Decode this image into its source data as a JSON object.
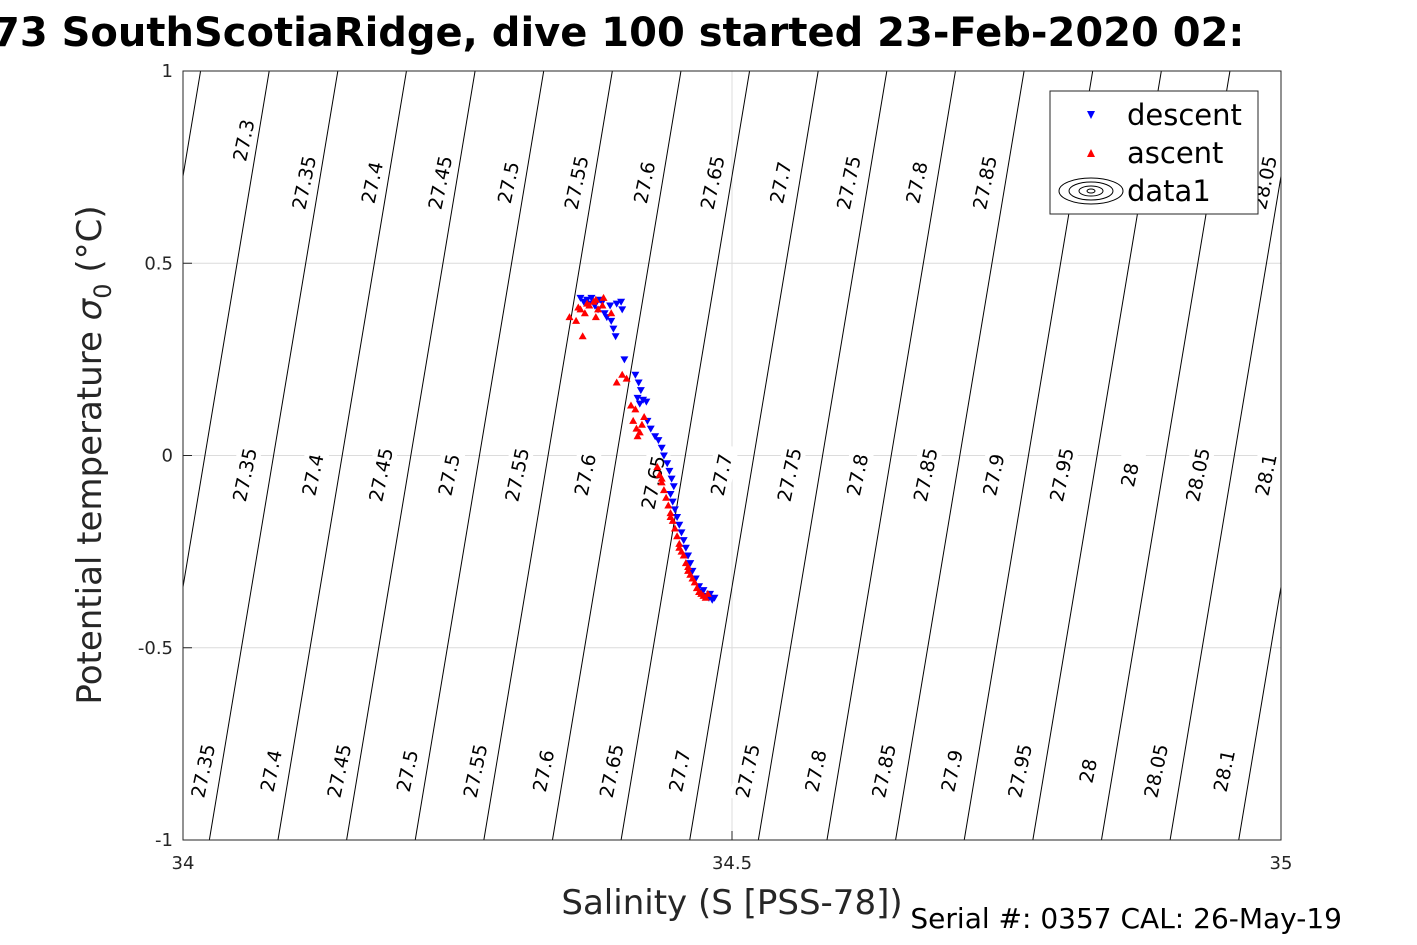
{
  "title": "73 SouthScotiaRidge, dive 100 started 23-Feb-2020 02:",
  "footer": "Serial #: 0357  CAL: 26-May-19",
  "chart_data": {
    "type": "scatter",
    "xlabel": "Salinity (S [PSS-78])",
    "ylabel_prefix": "Potential temperature ",
    "ylabel_symbol": "σ",
    "ylabel_subscript": "0",
    "ylabel_suffix": " (°C)",
    "xlim": [
      34,
      35
    ],
    "ylim": [
      -1,
      1
    ],
    "xticks": [
      {
        "value": 34,
        "label": "34"
      },
      {
        "value": 34.5,
        "label": "34.5"
      },
      {
        "value": 35,
        "label": "35"
      }
    ],
    "yticks": [
      {
        "value": 1,
        "label": "1"
      },
      {
        "value": 0.5,
        "label": "0.5"
      },
      {
        "value": 0,
        "label": "0"
      },
      {
        "value": -0.5,
        "label": "-0.5"
      },
      {
        "value": -1,
        "label": "-1"
      }
    ],
    "grid": true,
    "legend_position": "top-right",
    "legend": [
      {
        "label": "descent",
        "marker": "triangle-down",
        "color": "#0000ff"
      },
      {
        "label": "ascent",
        "marker": "triangle-up",
        "color": "#ff0000"
      },
      {
        "label": "data1",
        "marker": "contour",
        "color": "#000000"
      }
    ],
    "contours": {
      "levels": [
        27.3,
        27.35,
        27.4,
        27.45,
        27.5,
        27.55,
        27.6,
        27.65,
        27.7,
        27.75,
        27.8,
        27.85,
        27.9,
        27.95,
        28,
        28.05,
        28.1
      ],
      "labels_top": [
        {
          "s": 34.055,
          "t": 0.82,
          "label": "27.3"
        },
        {
          "s": 34.11,
          "t": 0.71,
          "label": "27.35"
        },
        {
          "s": 34.172,
          "t": 0.71,
          "label": "27.4"
        },
        {
          "s": 34.234,
          "t": 0.71,
          "label": "27.45"
        },
        {
          "s": 34.296,
          "t": 0.71,
          "label": "27.5"
        },
        {
          "s": 34.358,
          "t": 0.71,
          "label": "27.55"
        },
        {
          "s": 34.42,
          "t": 0.71,
          "label": "27.6"
        },
        {
          "s": 34.482,
          "t": 0.71,
          "label": "27.65"
        },
        {
          "s": 34.544,
          "t": 0.71,
          "label": "27.7"
        },
        {
          "s": 34.606,
          "t": 0.71,
          "label": "27.75"
        },
        {
          "s": 34.668,
          "t": 0.71,
          "label": "27.8"
        },
        {
          "s": 34.73,
          "t": 0.71,
          "label": "27.85"
        },
        {
          "s": 34.985,
          "t": 0.71,
          "label": "28.05"
        }
      ],
      "labels_mid": [
        {
          "s": 34.056,
          "t": -0.05,
          "label": "27.35"
        },
        {
          "s": 34.118,
          "t": -0.05,
          "label": "27.4"
        },
        {
          "s": 34.18,
          "t": -0.05,
          "label": "27.45"
        },
        {
          "s": 34.242,
          "t": -0.05,
          "label": "27.5"
        },
        {
          "s": 34.304,
          "t": -0.05,
          "label": "27.55"
        },
        {
          "s": 34.366,
          "t": -0.05,
          "label": "27.6"
        },
        {
          "s": 34.428,
          "t": -0.07,
          "label": "27.65"
        },
        {
          "s": 34.49,
          "t": -0.05,
          "label": "27.7"
        },
        {
          "s": 34.552,
          "t": -0.05,
          "label": "27.75"
        },
        {
          "s": 34.614,
          "t": -0.05,
          "label": "27.8"
        },
        {
          "s": 34.676,
          "t": -0.05,
          "label": "27.85"
        },
        {
          "s": 34.738,
          "t": -0.05,
          "label": "27.9"
        },
        {
          "s": 34.8,
          "t": -0.05,
          "label": "27.95"
        },
        {
          "s": 34.862,
          "t": -0.05,
          "label": "28"
        },
        {
          "s": 34.924,
          "t": -0.05,
          "label": "28.05"
        },
        {
          "s": 34.986,
          "t": -0.05,
          "label": "28.1"
        }
      ],
      "labels_bottom": [
        {
          "s": 34.018,
          "t": -0.82,
          "label": "27.35"
        },
        {
          "s": 34.08,
          "t": -0.82,
          "label": "27.4"
        },
        {
          "s": 34.142,
          "t": -0.82,
          "label": "27.45"
        },
        {
          "s": 34.204,
          "t": -0.82,
          "label": "27.5"
        },
        {
          "s": 34.266,
          "t": -0.82,
          "label": "27.55"
        },
        {
          "s": 34.328,
          "t": -0.82,
          "label": "27.6"
        },
        {
          "s": 34.39,
          "t": -0.82,
          "label": "27.65"
        },
        {
          "s": 34.452,
          "t": -0.82,
          "label": "27.7"
        },
        {
          "s": 34.514,
          "t": -0.82,
          "label": "27.75"
        },
        {
          "s": 34.576,
          "t": -0.82,
          "label": "27.8"
        },
        {
          "s": 34.638,
          "t": -0.82,
          "label": "27.85"
        },
        {
          "s": 34.7,
          "t": -0.82,
          "label": "27.9"
        },
        {
          "s": 34.762,
          "t": -0.82,
          "label": "27.95"
        },
        {
          "s": 34.824,
          "t": -0.82,
          "label": "28"
        },
        {
          "s": 34.886,
          "t": -0.82,
          "label": "28.05"
        },
        {
          "s": 34.948,
          "t": -0.82,
          "label": "28.1"
        }
      ]
    },
    "series": [
      {
        "name": "descent",
        "marker": "triangle-down",
        "color": "#0000ff",
        "points": [
          [
            34.362,
            0.41
          ],
          [
            34.365,
            0.4
          ],
          [
            34.368,
            0.405
          ],
          [
            34.372,
            0.41
          ],
          [
            34.375,
            0.39
          ],
          [
            34.378,
            0.38
          ],
          [
            34.382,
            0.4
          ],
          [
            34.384,
            0.37
          ],
          [
            34.386,
            0.36
          ],
          [
            34.39,
            0.35
          ],
          [
            34.392,
            0.33
          ],
          [
            34.394,
            0.31
          ],
          [
            34.389,
            0.39
          ],
          [
            34.399,
            0.4
          ],
          [
            34.4,
            0.38
          ],
          [
            34.38,
            0.405
          ],
          [
            34.37,
            0.395
          ],
          [
            34.395,
            0.395
          ],
          [
            34.402,
            0.25
          ],
          [
            34.412,
            0.21
          ],
          [
            34.415,
            0.19
          ],
          [
            34.417,
            0.17
          ],
          [
            34.414,
            0.15
          ],
          [
            34.419,
            0.145
          ],
          [
            34.416,
            0.135
          ],
          [
            34.422,
            0.14
          ],
          [
            34.423,
            0.09
          ],
          [
            34.426,
            0.07
          ],
          [
            34.43,
            0.05
          ],
          [
            34.433,
            0.04
          ],
          [
            34.436,
            0.02
          ],
          [
            34.438,
            0.0
          ],
          [
            34.441,
            -0.02
          ],
          [
            34.443,
            -0.04
          ],
          [
            34.445,
            -0.06
          ],
          [
            34.447,
            -0.08
          ],
          [
            34.444,
            -0.1
          ],
          [
            34.446,
            -0.12
          ],
          [
            34.448,
            -0.14
          ],
          [
            34.45,
            -0.16
          ],
          [
            34.452,
            -0.18
          ],
          [
            34.454,
            -0.2
          ],
          [
            34.456,
            -0.22
          ],
          [
            34.458,
            -0.24
          ],
          [
            34.46,
            -0.26
          ],
          [
            34.462,
            -0.28
          ],
          [
            34.464,
            -0.3
          ],
          [
            34.467,
            -0.32
          ],
          [
            34.47,
            -0.34
          ],
          [
            34.473,
            -0.355
          ],
          [
            34.476,
            -0.365
          ],
          [
            34.479,
            -0.37
          ],
          [
            34.482,
            -0.375
          ],
          [
            34.484,
            -0.37
          ],
          [
            34.48,
            -0.36
          ],
          [
            34.474,
            -0.35
          ]
        ]
      },
      {
        "name": "ascent",
        "marker": "triangle-up",
        "color": "#ff0000",
        "points": [
          [
            34.352,
            0.36
          ],
          [
            34.358,
            0.35
          ],
          [
            34.362,
            0.38
          ],
          [
            34.366,
            0.37
          ],
          [
            34.37,
            0.39
          ],
          [
            34.374,
            0.4
          ],
          [
            34.378,
            0.38
          ],
          [
            34.382,
            0.39
          ],
          [
            34.376,
            0.405
          ],
          [
            34.368,
            0.395
          ],
          [
            34.36,
            0.385
          ],
          [
            34.364,
            0.31
          ],
          [
            34.39,
            0.37
          ],
          [
            34.383,
            0.41
          ],
          [
            34.376,
            0.36
          ],
          [
            34.395,
            0.19
          ],
          [
            34.404,
            0.2
          ],
          [
            34.4,
            0.21
          ],
          [
            34.408,
            0.13
          ],
          [
            34.412,
            0.12
          ],
          [
            34.41,
            0.09
          ],
          [
            34.413,
            0.07
          ],
          [
            34.416,
            0.06
          ],
          [
            34.414,
            0.05
          ],
          [
            34.418,
            0.08
          ],
          [
            34.42,
            0.1
          ],
          [
            34.432,
            -0.03
          ],
          [
            34.434,
            -0.05
          ],
          [
            34.436,
            -0.07
          ],
          [
            34.438,
            -0.09
          ],
          [
            34.44,
            -0.11
          ],
          [
            34.442,
            -0.13
          ],
          [
            34.444,
            -0.15
          ],
          [
            34.446,
            -0.17
          ],
          [
            34.448,
            -0.19
          ],
          [
            34.45,
            -0.21
          ],
          [
            34.452,
            -0.23
          ],
          [
            34.454,
            -0.25
          ],
          [
            34.456,
            -0.26
          ],
          [
            34.458,
            -0.28
          ],
          [
            34.46,
            -0.29
          ],
          [
            34.462,
            -0.31
          ],
          [
            34.464,
            -0.32
          ],
          [
            34.466,
            -0.33
          ],
          [
            34.468,
            -0.345
          ],
          [
            34.47,
            -0.355
          ],
          [
            34.472,
            -0.36
          ],
          [
            34.474,
            -0.365
          ],
          [
            34.476,
            -0.37
          ],
          [
            34.478,
            -0.36
          ],
          [
            34.46,
            -0.3
          ],
          [
            34.452,
            -0.24
          ],
          [
            34.444,
            -0.16
          ],
          [
            34.436,
            -0.06
          ]
        ]
      }
    ]
  }
}
